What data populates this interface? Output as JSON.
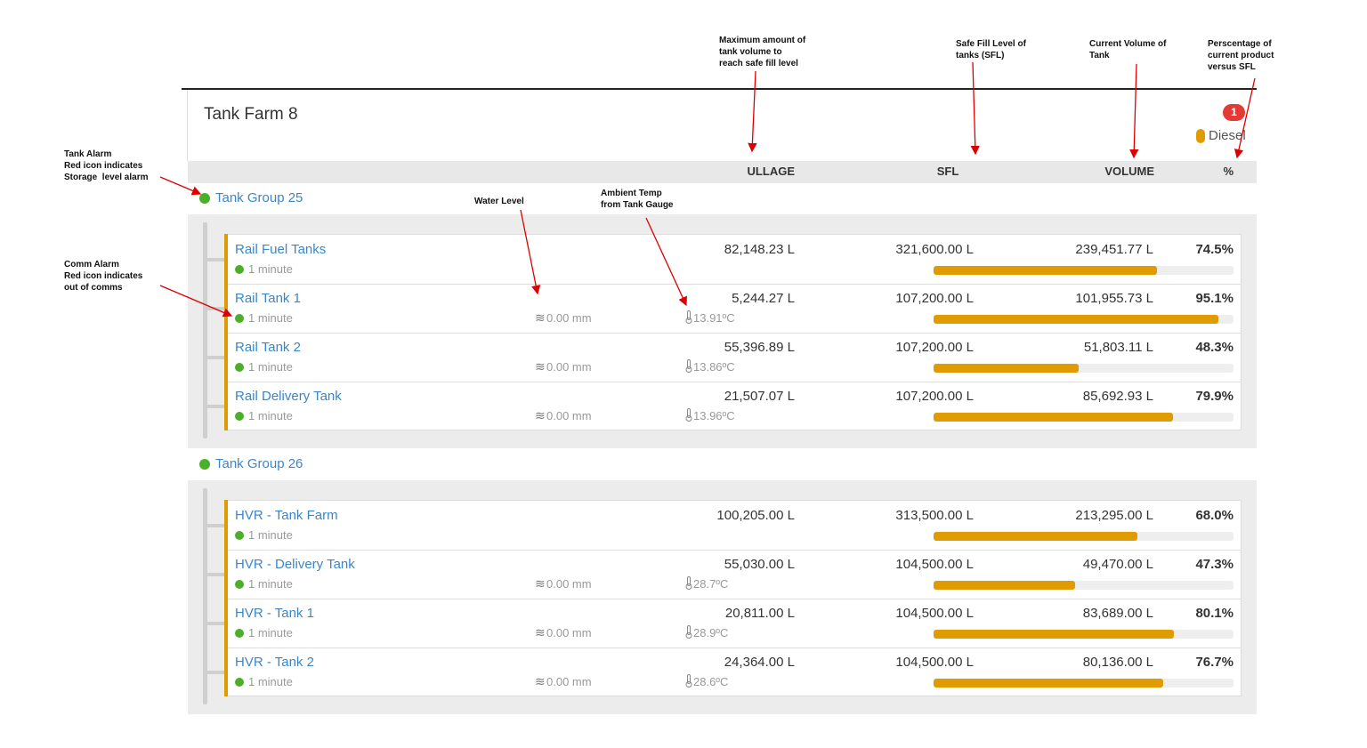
{
  "header": {
    "title": "Tank Farm 8",
    "badge": "1",
    "product": "Diesel"
  },
  "columns": {
    "ullage": "ULLAGE",
    "sfl": "SFL",
    "volume": "VOLUME",
    "percent": "%"
  },
  "groups": [
    {
      "name": "Tank Group 25",
      "tanks": [
        {
          "name": "Rail Fuel Tanks",
          "status": "1 minute",
          "ullage": "82,148.23 L",
          "sfl": "321,600.00 L",
          "volume": "239,451.77 L",
          "percent": {
            "value": 74.5,
            "label": "74.5%"
          }
        },
        {
          "name": "Rail Tank 1",
          "status": "1 minute",
          "water": "0.00 mm",
          "temp": "13.91ºC",
          "ullage": "5,244.27 L",
          "sfl": "107,200.00 L",
          "volume": "101,955.73 L",
          "percent": {
            "value": 95.1,
            "label": "95.1%"
          }
        },
        {
          "name": "Rail Tank 2",
          "status": "1 minute",
          "water": "0.00 mm",
          "temp": "13.86ºC",
          "ullage": "55,396.89 L",
          "sfl": "107,200.00 L",
          "volume": "51,803.11 L",
          "percent": {
            "value": 48.3,
            "label": "48.3%"
          }
        },
        {
          "name": "Rail Delivery Tank",
          "status": "1 minute",
          "water": "0.00 mm",
          "temp": "13.96ºC",
          "ullage": "21,507.07 L",
          "sfl": "107,200.00 L",
          "volume": "85,692.93 L",
          "percent": {
            "value": 79.9,
            "label": "79.9%"
          }
        }
      ]
    },
    {
      "name": "Tank Group 26",
      "tanks": [
        {
          "name": "HVR - Tank Farm",
          "status": "1 minute",
          "ullage": "100,205.00 L",
          "sfl": "313,500.00 L",
          "volume": "213,295.00 L",
          "percent": {
            "value": 68.0,
            "label": "68.0%"
          }
        },
        {
          "name": "HVR - Delivery Tank",
          "status": "1 minute",
          "water": "0.00 mm",
          "temp": "28.7ºC",
          "ullage": "55,030.00 L",
          "sfl": "104,500.00 L",
          "volume": "49,470.00 L",
          "percent": {
            "value": 47.3,
            "label": "47.3%"
          }
        },
        {
          "name": "HVR - Tank 1",
          "status": "1 minute",
          "water": "0.00 mm",
          "temp": "28.9ºC",
          "ullage": "20,811.00 L",
          "sfl": "104,500.00 L",
          "volume": "83,689.00 L",
          "percent": {
            "value": 80.1,
            "label": "80.1%"
          }
        },
        {
          "name": "HVR - Tank 2",
          "status": "1 minute",
          "water": "0.00 mm",
          "temp": "28.6ºC",
          "ullage": "24,364.00 L",
          "sfl": "104,500.00 L",
          "volume": "80,136.00 L",
          "percent": {
            "value": 76.7,
            "label": "76.7%"
          }
        }
      ]
    }
  ],
  "annotations": [
    {
      "lines": [
        "Maximum amount of",
        "tank volume to",
        "reach safe fill level"
      ]
    },
    {
      "lines": [
        "Safe Fill Level of",
        "tanks (SFL)"
      ]
    },
    {
      "lines": [
        "Current Volume of",
        "Tank"
      ]
    },
    {
      "lines": [
        "Perscentage of",
        "current product",
        "versus SFL"
      ]
    },
    {
      "lines": [
        "Tank Alarm",
        "Red icon indicates",
        "Storage  level alarm"
      ]
    },
    {
      "lines": [
        "Comm Alarm",
        "Red icon indicates",
        "out of comms"
      ]
    },
    {
      "lines": [
        "Water Level"
      ]
    },
    {
      "lines": [
        "Ambient Temp",
        "from Tank Gauge"
      ]
    }
  ]
}
